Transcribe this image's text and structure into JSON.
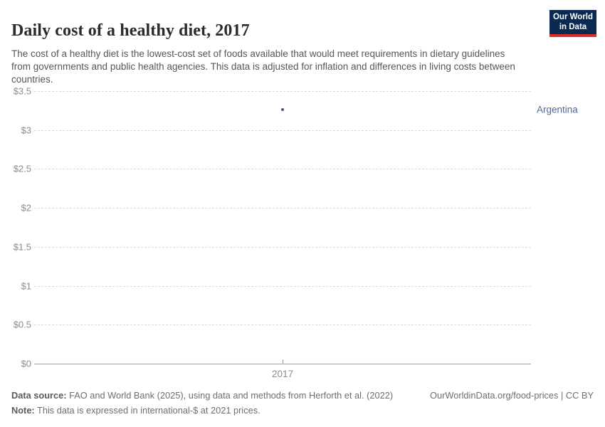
{
  "header": {
    "title": "Daily cost of a healthy diet, 2017",
    "subtitle": "The cost of a healthy diet is the lowest-cost set of foods available that would meet requirements in dietary guidelines from governments and public health agencies. This data is adjusted for inflation and differences in living costs between countries.",
    "logo": {
      "line1": "Our World",
      "line2": "in Data",
      "bg_color": "#0b2a53",
      "accent_color": "#dc2e27"
    }
  },
  "chart_data": {
    "type": "scatter",
    "title": "Daily cost of a healthy diet, 2017",
    "x": [
      2017
    ],
    "xticks": [
      "2017"
    ],
    "series": [
      {
        "name": "Argentina",
        "values": [
          3.26
        ],
        "color": "#3d5a8a",
        "label_color": "#4c6a9c"
      }
    ],
    "ylim": [
      0,
      3.5
    ],
    "yticks": [
      {
        "label": "$0",
        "value": 0
      },
      {
        "label": "$0.5",
        "value": 0.5
      },
      {
        "label": "$1",
        "value": 1
      },
      {
        "label": "$1.5",
        "value": 1.5
      },
      {
        "label": "$2",
        "value": 2
      },
      {
        "label": "$2.5",
        "value": 2.5
      },
      {
        "label": "$3",
        "value": 3
      },
      {
        "label": "$3.5",
        "value": 3.5
      }
    ],
    "grid": "horizontal-dashed",
    "legend_position": "right-of-plot",
    "unit_prefix": "$"
  },
  "footer": {
    "data_source_label": "Data source:",
    "data_source_text": " FAO and World Bank (2025), using data and methods from Herforth et al. (2022)",
    "note_label": "Note:",
    "note_text": " This data is expressed in international-$ at 2021 prices.",
    "link": "OurWorldinData.org/food-prices | CC BY"
  }
}
